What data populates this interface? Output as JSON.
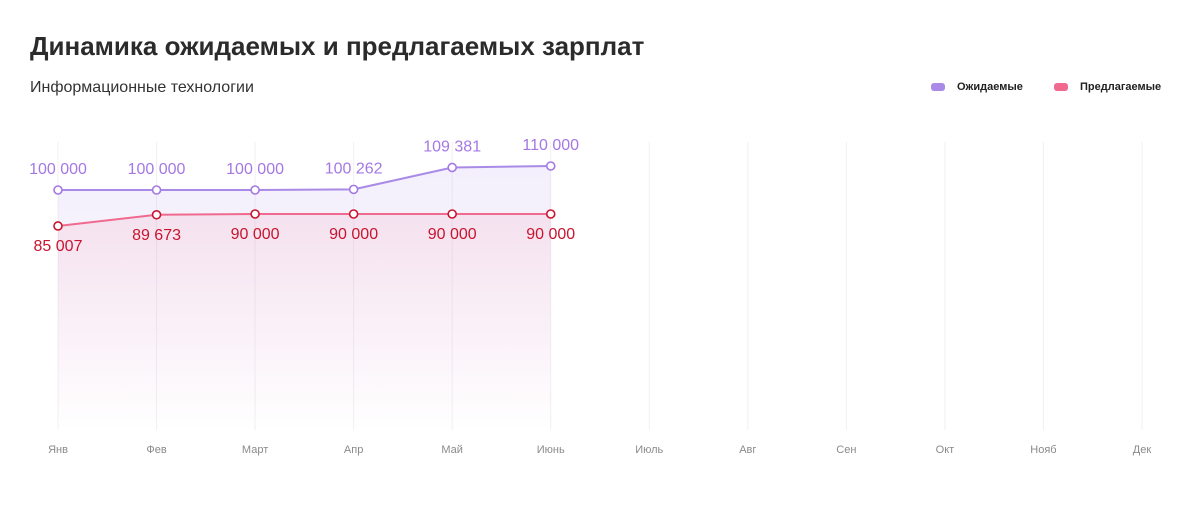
{
  "chart_data": {
    "type": "line",
    "title": "Динамика ожидаемых и предлагаемых зарплат",
    "subtitle": "Информационные технологии",
    "categories": [
      "Янв",
      "Фев",
      "Март",
      "Апр",
      "Май",
      "Июнь",
      "Июль",
      "Авг",
      "Сен",
      "Окт",
      "Нояб",
      "Дек"
    ],
    "series": [
      {
        "name": "Ожидаемые",
        "color": "#a98ae6",
        "values": [
          100000,
          100000,
          100000,
          100262,
          109381,
          110000,
          null,
          null,
          null,
          null,
          null,
          null
        ],
        "value_labels": [
          "100 000",
          "100 000",
          "100 000",
          "100 262",
          "109 381",
          "110 000",
          null,
          null,
          null,
          null,
          null,
          null
        ]
      },
      {
        "name": "Предлагаемые",
        "color": "#f06a8f",
        "values": [
          85007,
          89673,
          90000,
          90000,
          90000,
          90000,
          null,
          null,
          null,
          null,
          null,
          null
        ],
        "value_labels": [
          "85 007",
          "89 673",
          "90 000",
          "90 000",
          "90 000",
          "90 000",
          null,
          null,
          null,
          null,
          null,
          null
        ]
      }
    ],
    "ylim": [
      0,
      120000
    ],
    "grid": true,
    "legend": "top-right"
  }
}
